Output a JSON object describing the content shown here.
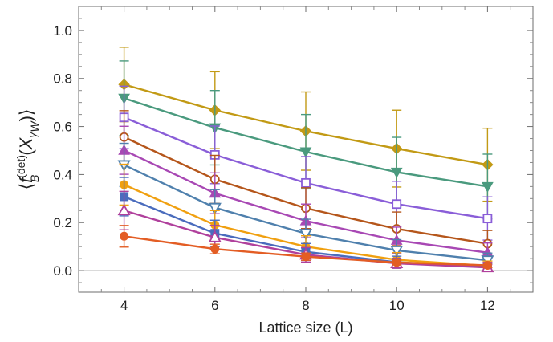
{
  "chart_data": {
    "type": "line",
    "xlabel": "Lattice size (L)",
    "ylabel": {
      "open": "⟨",
      "f": "f",
      "sup": "(det)",
      "sub": "B",
      "mid": "(",
      "x": "X",
      "gamma": "γ",
      "w": "W",
      "close_paren": ")",
      "close": "⟩"
    },
    "x": [
      4,
      6,
      8,
      10,
      12
    ],
    "xlim": [
      3,
      13
    ],
    "ylim": [
      -0.09,
      1.1
    ],
    "xticks": [
      "4",
      "6",
      "8",
      "10",
      "12"
    ],
    "yticks": [
      "0.0",
      "0.2",
      "0.4",
      "0.6",
      "0.8",
      "1.0"
    ],
    "grid": false,
    "reference_line_y": 0,
    "series": [
      {
        "color": "#c29a15",
        "marker": "diamond",
        "values": [
          0.775,
          0.668,
          0.581,
          0.508,
          0.441
        ],
        "errors": [
          0.155,
          0.16,
          0.163,
          0.16,
          0.152
        ]
      },
      {
        "color": "#4a9a7e",
        "marker": "triangle-down",
        "values": [
          0.718,
          0.595,
          0.495,
          0.41,
          0.35
        ],
        "errors": [
          0.155,
          0.155,
          0.155,
          0.145,
          0.135
        ]
      },
      {
        "color": "#8a5ed8",
        "marker": "square-open",
        "values": [
          0.638,
          0.482,
          0.365,
          0.277,
          0.217
        ],
        "errors": [
          0.13,
          0.12,
          0.11,
          0.095,
          0.09
        ]
      },
      {
        "color": "#b5561b",
        "marker": "circle-open",
        "values": [
          0.556,
          0.38,
          0.26,
          0.174,
          0.112
        ],
        "errors": [
          0.11,
          0.1,
          0.085,
          0.07,
          0.055
        ]
      },
      {
        "color": "#a848b4",
        "marker": "triangle-up",
        "values": [
          0.501,
          0.322,
          0.207,
          0.126,
          0.075
        ],
        "errors": [
          0.1,
          0.085,
          0.07,
          0.055,
          0.04
        ]
      },
      {
        "color": "#4f80ad",
        "marker": "triangle-down-open",
        "values": [
          0.44,
          0.262,
          0.154,
          0.084,
          0.043
        ],
        "errors": [
          0.09,
          0.075,
          0.06,
          0.045,
          0.03
        ]
      },
      {
        "color": "#f0a010",
        "marker": "circle",
        "values": [
          0.358,
          0.19,
          0.1,
          0.045,
          0.02
        ],
        "errors": [
          0.085,
          0.06,
          0.045,
          0.03,
          0.02
        ]
      },
      {
        "color": "#4a6cbd",
        "marker": "square",
        "values": [
          0.308,
          0.155,
          0.078,
          0.035,
          0.015
        ],
        "errors": [
          0.08,
          0.055,
          0.035,
          0.025,
          0.015
        ]
      },
      {
        "color": "#b0409c",
        "marker": "triangle-up-open",
        "values": [
          0.25,
          0.138,
          0.066,
          0.03,
          0.013
        ],
        "errors": [
          0.08,
          0.05,
          0.03,
          0.02,
          0.012
        ]
      },
      {
        "color": "#e35d24",
        "marker": "circle",
        "values": [
          0.143,
          0.09,
          0.058,
          0.034,
          0.022
        ],
        "errors": [
          0.045,
          0.02,
          0.015,
          0.01,
          0.01
        ]
      }
    ]
  }
}
